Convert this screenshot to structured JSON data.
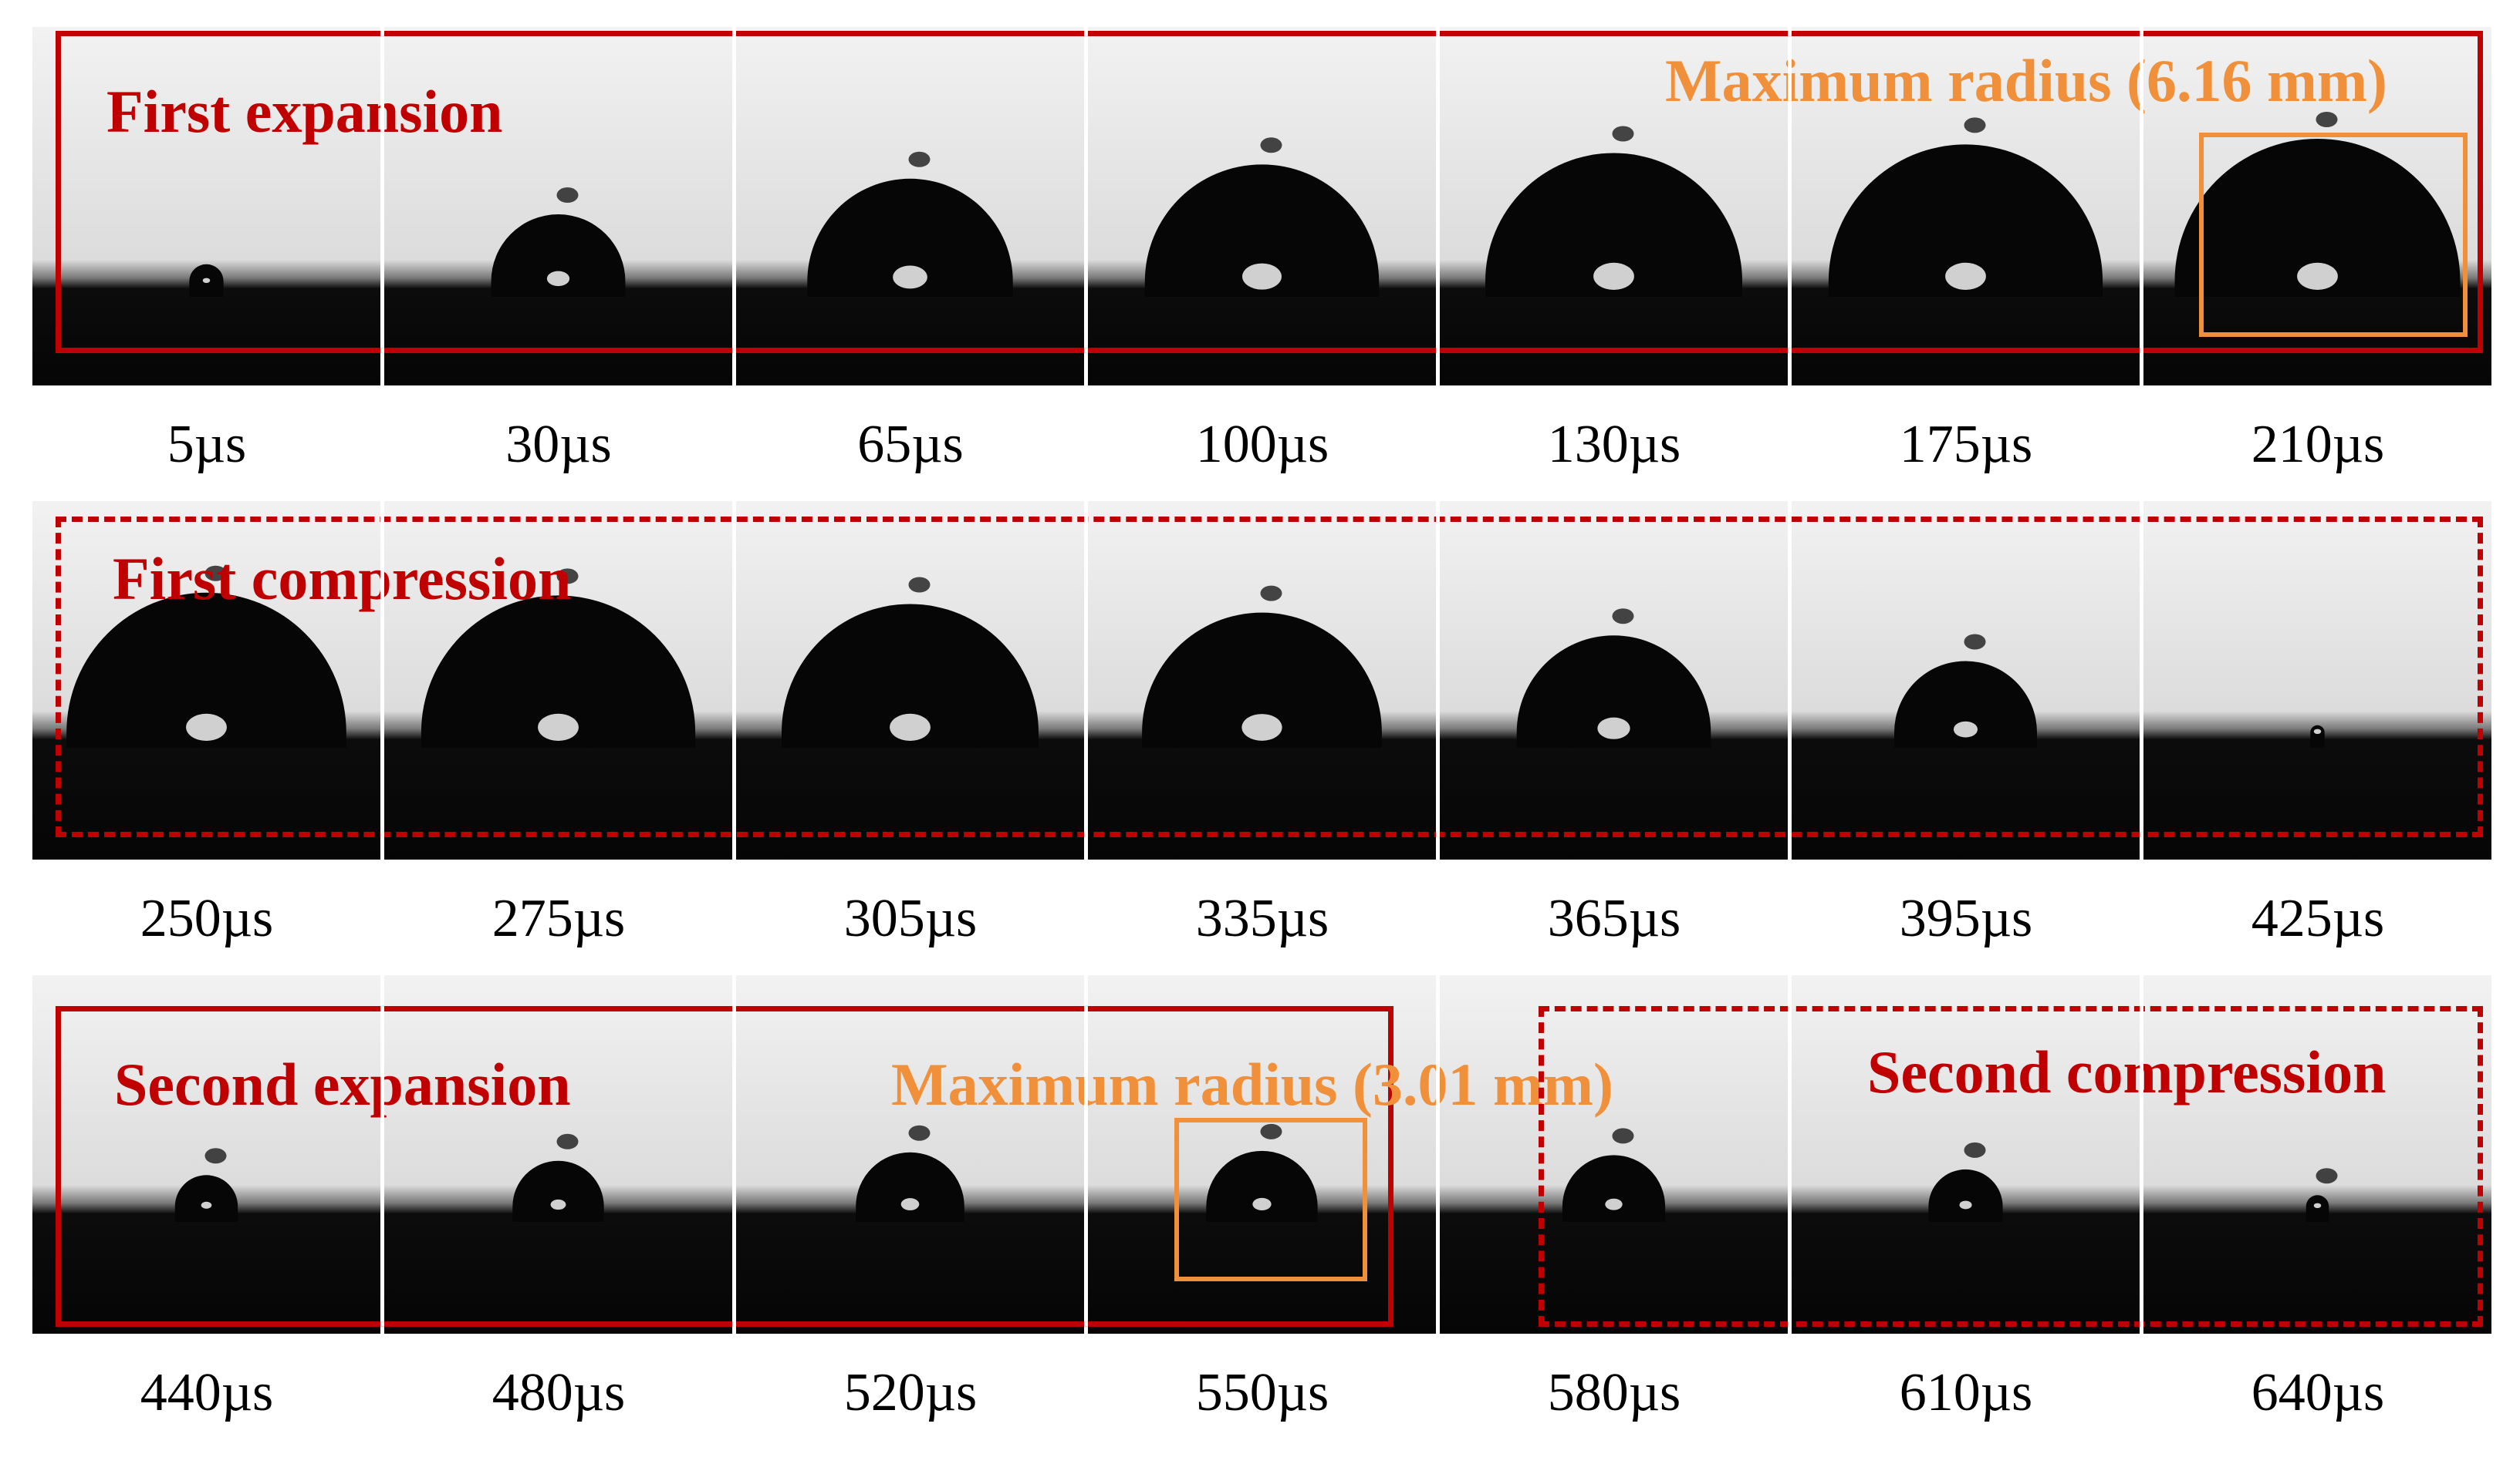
{
  "rows": [
    {
      "phase_label": "First expansion",
      "max_radius_label": "Maximum radius (6.16 mm)",
      "frames": [
        {
          "time": "5µs",
          "radius_rel": 0.12
        },
        {
          "time": "30µs",
          "radius_rel": 0.47
        },
        {
          "time": "65µs",
          "radius_rel": 0.72
        },
        {
          "time": "100µs",
          "radius_rel": 0.82
        },
        {
          "time": "130µs",
          "radius_rel": 0.9
        },
        {
          "time": "175µs",
          "radius_rel": 0.96
        },
        {
          "time": "210µs",
          "radius_rel": 1.0
        }
      ]
    },
    {
      "phase_label": "First compression",
      "frames": [
        {
          "time": "250µs",
          "radius_rel": 0.98
        },
        {
          "time": "275µs",
          "radius_rel": 0.96
        },
        {
          "time": "305µs",
          "radius_rel": 0.9
        },
        {
          "time": "335µs",
          "radius_rel": 0.84
        },
        {
          "time": "365µs",
          "radius_rel": 0.68
        },
        {
          "time": "395µs",
          "radius_rel": 0.5
        },
        {
          "time": "425µs",
          "radius_rel": 0.05
        }
      ]
    },
    {
      "phase_label_left": "Second expansion",
      "max_radius_label": "Maximum radius (3.01 mm)",
      "phase_label_right": "Second compression",
      "frames": [
        {
          "time": "440µs",
          "radius_rel": 0.22
        },
        {
          "time": "480µs",
          "radius_rel": 0.32
        },
        {
          "time": "520µs",
          "radius_rel": 0.38
        },
        {
          "time": "550µs",
          "radius_rel": 0.39
        },
        {
          "time": "580µs",
          "radius_rel": 0.36
        },
        {
          "time": "610µs",
          "radius_rel": 0.26
        },
        {
          "time": "640µs",
          "radius_rel": 0.08
        }
      ]
    }
  ],
  "colors": {
    "phase_box": "#c00000",
    "max_radius_box": "#f0903a",
    "frame_bright": "#ececec",
    "frame_dark": "#0c0c0c",
    "bubble": "#060606"
  }
}
